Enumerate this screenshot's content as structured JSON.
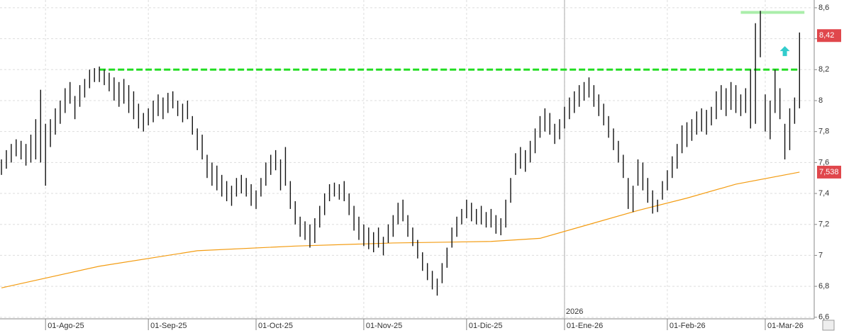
{
  "chart_data": {
    "type": "ohlc",
    "color": "#111111",
    "high": [
      7.62,
      7.68,
      7.72,
      7.75,
      7.74,
      7.72,
      7.78,
      7.88,
      8.07,
      7.85,
      7.88,
      7.95,
      8.0,
      8.08,
      8.12,
      8.03,
      8.1,
      8.14,
      8.2,
      8.21,
      8.22,
      8.2,
      8.18,
      8.15,
      8.12,
      8.14,
      8.1,
      8.06,
      7.98,
      7.92,
      7.95,
      8.0,
      8.04,
      8.02,
      8.05,
      8.06,
      8.0,
      7.98,
      8.0,
      7.9,
      7.82,
      7.78,
      7.65,
      7.6,
      7.58,
      7.52,
      7.48,
      7.45,
      7.5,
      7.52,
      7.5,
      7.46,
      7.42,
      7.5,
      7.6,
      7.65,
      7.68,
      7.62,
      7.7,
      7.48,
      7.35,
      7.25,
      7.22,
      7.2,
      7.24,
      7.32,
      7.4,
      7.46,
      7.47,
      7.46,
      7.48,
      7.4,
      7.32,
      7.25,
      7.2,
      7.18,
      7.15,
      7.18,
      7.12,
      7.2,
      7.26,
      7.34,
      7.36,
      7.26,
      7.18,
      7.1,
      7.02,
      6.95,
      6.9,
      6.85,
      6.95,
      7.05,
      7.18,
      7.25,
      7.3,
      7.36,
      7.34,
      7.3,
      7.32,
      7.28,
      7.3,
      7.26,
      7.24,
      7.36,
      7.5,
      7.66,
      7.7,
      7.68,
      7.74,
      7.82,
      7.9,
      7.95,
      7.92,
      7.85,
      7.88,
      7.96,
      8.02,
      8.06,
      8.1,
      8.12,
      8.15,
      8.1,
      8.04,
      7.98,
      7.9,
      7.82,
      7.74,
      7.65,
      7.5,
      7.45,
      7.62,
      7.6,
      7.5,
      7.42,
      7.36,
      7.48,
      7.55,
      7.64,
      7.72,
      7.84,
      7.86,
      7.88,
      7.93,
      7.95,
      7.94,
      7.96,
      8.06,
      8.1,
      8.08,
      8.12,
      8.1,
      8.04,
      8.08,
      8.2,
      8.5,
      8.58,
      8.04,
      8.0,
      8.2,
      8.08,
      7.85,
      7.95,
      8.02,
      8.44
    ],
    "low": [
      7.52,
      7.56,
      7.6,
      7.64,
      7.62,
      7.58,
      7.6,
      7.62,
      7.6,
      7.45,
      7.7,
      7.78,
      7.85,
      7.92,
      7.98,
      7.88,
      7.96,
      8.02,
      8.08,
      8.12,
      8.12,
      8.1,
      8.06,
      8.0,
      7.96,
      7.98,
      7.92,
      7.88,
      7.82,
      7.8,
      7.84,
      7.86,
      7.9,
      7.88,
      7.92,
      7.95,
      7.9,
      7.86,
      7.88,
      7.78,
      7.68,
      7.62,
      7.5,
      7.45,
      7.42,
      7.38,
      7.35,
      7.32,
      7.38,
      7.4,
      7.38,
      7.32,
      7.3,
      7.38,
      7.45,
      7.52,
      7.55,
      7.42,
      7.45,
      7.3,
      7.2,
      7.12,
      7.1,
      7.05,
      7.08,
      7.18,
      7.26,
      7.35,
      7.38,
      7.36,
      7.35,
      7.26,
      7.16,
      7.1,
      7.06,
      7.04,
      7.02,
      7.05,
      7.0,
      7.08,
      7.12,
      7.2,
      7.22,
      7.12,
      7.06,
      6.98,
      6.9,
      6.84,
      6.78,
      6.74,
      6.82,
      6.92,
      7.05,
      7.12,
      7.2,
      7.24,
      7.22,
      7.2,
      7.2,
      7.18,
      7.18,
      7.14,
      7.13,
      7.18,
      7.34,
      7.52,
      7.56,
      7.54,
      7.6,
      7.66,
      7.76,
      7.8,
      7.78,
      7.72,
      7.75,
      7.82,
      7.88,
      7.92,
      7.96,
      8.0,
      8.02,
      7.96,
      7.9,
      7.84,
      7.76,
      7.68,
      7.6,
      7.5,
      7.3,
      7.28,
      7.45,
      7.42,
      7.34,
      7.27,
      7.28,
      7.36,
      7.42,
      7.5,
      7.56,
      7.66,
      7.7,
      7.74,
      7.78,
      7.8,
      7.78,
      7.84,
      7.88,
      7.94,
      7.9,
      7.94,
      7.92,
      7.9,
      7.92,
      7.82,
      7.85,
      8.28,
      7.8,
      7.75,
      7.92,
      7.88,
      7.62,
      7.68,
      7.85,
      7.95
    ],
    "moving_average": {
      "color": "#f39c12",
      "x": [
        0,
        20,
        40,
        60,
        80,
        100,
        110,
        120,
        130,
        140,
        150,
        163
      ],
      "values": [
        6.79,
        6.93,
        7.03,
        7.06,
        7.08,
        7.09,
        7.11,
        7.2,
        7.29,
        7.37,
        7.46,
        7.538
      ]
    },
    "last_price": {
      "value": 8.42,
      "label": "8,42"
    },
    "last_average": {
      "value": 7.538,
      "label": "7,538"
    },
    "resistance": {
      "value": 8.2,
      "x": [
        20,
        163
      ],
      "color": "#22dd22"
    },
    "high_line": {
      "value": 8.57,
      "x": [
        151,
        164
      ],
      "color": "#aaeeaa"
    },
    "arrow": {
      "x": 160,
      "y": 8.32,
      "color": "#33cccc"
    },
    "year_label": {
      "x": 115,
      "label": "2026"
    },
    "xlim": [
      -0.3,
      166
    ],
    "ylim": [
      6.59,
      8.65
    ],
    "xticks": [
      {
        "value": 9,
        "label": "01-Ago-25"
      },
      {
        "value": 30,
        "label": "01-Sep-25"
      },
      {
        "value": 52,
        "label": "01-Oct-25"
      },
      {
        "value": 74,
        "label": "01-Nov-25"
      },
      {
        "value": 95,
        "label": "01-Dic-25"
      },
      {
        "value": 115,
        "label": "01-Ene-26"
      },
      {
        "value": 136,
        "label": "01-Feb-26"
      },
      {
        "value": 156,
        "label": "01-Mar-26"
      }
    ],
    "yticks": [
      {
        "value": 6.6,
        "label": "6,6"
      },
      {
        "value": 6.8,
        "label": "6,8"
      },
      {
        "value": 7,
        "label": "7"
      },
      {
        "value": 7.2,
        "label": "7,2"
      },
      {
        "value": 7.4,
        "label": "7,4"
      },
      {
        "value": 7.6,
        "label": "7,6"
      },
      {
        "value": 7.8,
        "label": "7,8"
      },
      {
        "value": 8,
        "label": "8"
      },
      {
        "value": 8.2,
        "label": "8,2"
      },
      {
        "value": 8.4,
        "label": "8,4"
      },
      {
        "value": 8.6,
        "label": "8,6"
      }
    ],
    "grid": true
  }
}
